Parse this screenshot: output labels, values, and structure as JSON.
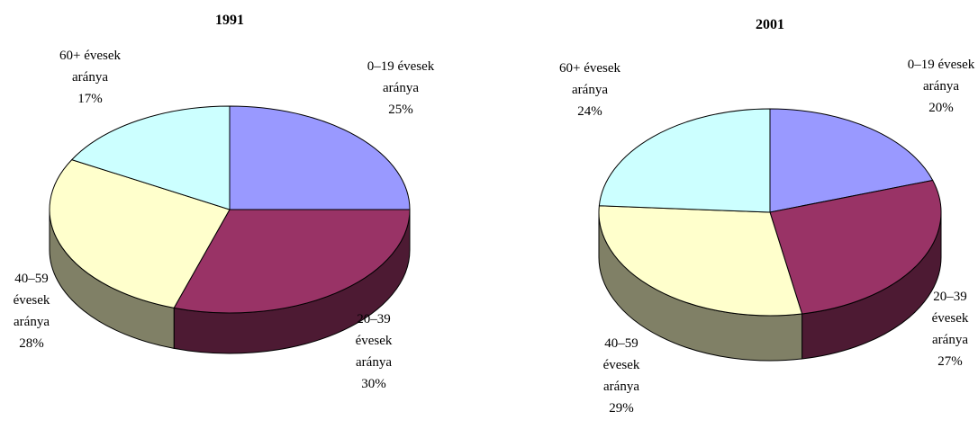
{
  "chart_data": [
    {
      "type": "pie3d",
      "title": "1991",
      "categories": [
        "0–19 évesek aránya",
        "20–39 évesek aránya",
        "40–59 évesek aránya",
        "60+ évesek aránya"
      ],
      "values": [
        25,
        30,
        28,
        17
      ],
      "value_labels": [
        "25%",
        "30%",
        "28%",
        "17%"
      ],
      "colors": [
        "#9999ff",
        "#993366",
        "#ffffcc",
        "#ccffff"
      ]
    },
    {
      "type": "pie3d",
      "title": "2001",
      "categories": [
        "0–19 évesek aránya",
        "20–39 évesek aránya",
        "40–59 évesek aránya",
        "60+ évesek aránya"
      ],
      "values": [
        20,
        27,
        29,
        24
      ],
      "value_labels": [
        "20%",
        "27%",
        "29%",
        "24%"
      ],
      "colors": [
        "#9999ff",
        "#993366",
        "#ffffcc",
        "#ccffff"
      ]
    }
  ]
}
